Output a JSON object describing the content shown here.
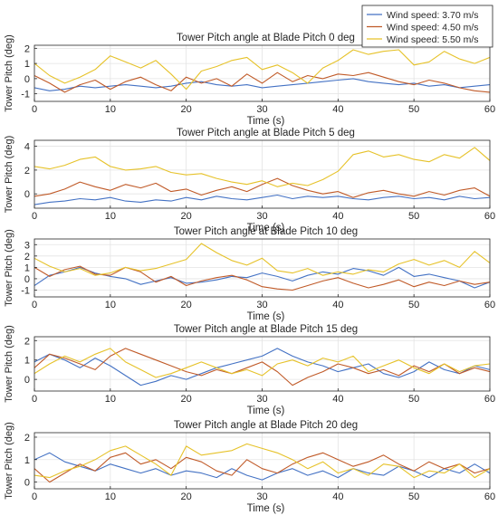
{
  "legend": {
    "placement": "top-right",
    "entries": [
      {
        "label": "Wind speed: 3.70 m/s",
        "color": "#4472c4"
      },
      {
        "label": "Wind speed: 4.50 m/s",
        "color": "#c05a28"
      },
      {
        "label": "Wind speed: 5.50 m/s",
        "color": "#e6c229"
      }
    ]
  },
  "chart_data": [
    {
      "type": "line",
      "title": "Tower Pitch angle at Blade Pitch 0 deg",
      "xlabel": "Time (s)",
      "ylabel": "Tower Pitch (deg)",
      "xlim": [
        0,
        60
      ],
      "ylim": [
        -1.5,
        2.2
      ],
      "xticks": [
        0,
        10,
        20,
        30,
        40,
        50,
        60
      ],
      "yticks": [
        -1,
        0,
        1,
        2
      ],
      "grid": true,
      "x": [
        0,
        2,
        4,
        6,
        8,
        10,
        12,
        14,
        16,
        18,
        20,
        22,
        24,
        26,
        28,
        30,
        32,
        34,
        36,
        38,
        40,
        42,
        44,
        46,
        48,
        50,
        52,
        54,
        56,
        58,
        60
      ],
      "series": [
        {
          "name": "Wind speed: 3.70 m/s",
          "color": "#4472c4",
          "values": [
            -0.6,
            -0.8,
            -0.7,
            -0.5,
            -0.6,
            -0.5,
            -0.4,
            -0.5,
            -0.6,
            -0.5,
            -0.3,
            -0.2,
            -0.4,
            -0.5,
            -0.4,
            -0.6,
            -0.5,
            -0.4,
            -0.3,
            -0.2,
            -0.1,
            0.0,
            -0.2,
            -0.3,
            -0.4,
            -0.3,
            -0.5,
            -0.4,
            -0.6,
            -0.5,
            -0.4
          ]
        },
        {
          "name": "Wind speed: 4.50 m/s",
          "color": "#c05a28",
          "values": [
            0.2,
            -0.3,
            -0.9,
            -0.4,
            -0.1,
            -0.7,
            -0.2,
            0.1,
            -0.4,
            -0.8,
            0.1,
            -0.3,
            0.0,
            -0.5,
            0.3,
            -0.3,
            0.4,
            -0.2,
            0.2,
            0.0,
            0.3,
            0.2,
            0.4,
            0.1,
            -0.2,
            -0.4,
            -0.1,
            -0.3,
            -0.6,
            -0.8,
            -0.9
          ]
        },
        {
          "name": "Wind speed: 5.50 m/s",
          "color": "#e6c229",
          "values": [
            1.0,
            0.2,
            -0.3,
            0.1,
            0.6,
            1.5,
            1.1,
            0.7,
            1.2,
            0.3,
            -0.7,
            0.5,
            0.8,
            1.2,
            1.4,
            0.6,
            0.9,
            0.4,
            -0.3,
            0.7,
            1.2,
            1.9,
            1.6,
            1.8,
            1.9,
            0.9,
            1.1,
            1.8,
            1.3,
            1.0,
            1.4
          ]
        }
      ]
    },
    {
      "type": "line",
      "title": "Tower Pitch angle at Blade Pitch 5 deg",
      "xlabel": "Time (s)",
      "ylabel": "Tower Pitch (deg)",
      "xlim": [
        0,
        60
      ],
      "ylim": [
        -1.2,
        4.5
      ],
      "xticks": [
        0,
        10,
        20,
        30,
        40,
        50,
        60
      ],
      "yticks": [
        0,
        2,
        4
      ],
      "grid": true,
      "x": [
        0,
        2,
        4,
        6,
        8,
        10,
        12,
        14,
        16,
        18,
        20,
        22,
        24,
        26,
        28,
        30,
        32,
        34,
        36,
        38,
        40,
        42,
        44,
        46,
        48,
        50,
        52,
        54,
        56,
        58,
        60
      ],
      "series": [
        {
          "name": "Wind speed: 3.70 m/s",
          "color": "#4472c4",
          "values": [
            -0.9,
            -0.7,
            -0.6,
            -0.4,
            -0.5,
            -0.3,
            -0.6,
            -0.7,
            -0.5,
            -0.6,
            -0.3,
            -0.5,
            -0.2,
            -0.4,
            -0.5,
            -0.3,
            -0.1,
            -0.4,
            -0.2,
            -0.3,
            -0.2,
            -0.4,
            -0.5,
            -0.3,
            -0.2,
            -0.4,
            -0.3,
            -0.5,
            -0.2,
            -0.4,
            -0.3
          ]
        },
        {
          "name": "Wind speed: 4.50 m/s",
          "color": "#c05a28",
          "values": [
            -0.2,
            0.0,
            0.4,
            1.0,
            0.6,
            0.3,
            0.8,
            0.5,
            0.9,
            0.2,
            0.4,
            -0.1,
            0.3,
            0.6,
            0.2,
            0.8,
            1.3,
            0.7,
            0.3,
            0.0,
            0.2,
            -0.3,
            0.1,
            0.3,
            0.0,
            -0.2,
            0.2,
            -0.1,
            0.3,
            0.5,
            -0.2
          ]
        },
        {
          "name": "Wind speed: 5.50 m/s",
          "color": "#e6c229",
          "values": [
            2.3,
            2.1,
            2.4,
            2.9,
            3.1,
            2.3,
            2.0,
            2.1,
            2.3,
            1.8,
            1.6,
            1.7,
            1.3,
            1.0,
            0.8,
            1.1,
            0.6,
            0.9,
            0.7,
            1.2,
            1.9,
            3.3,
            3.6,
            3.1,
            3.3,
            2.9,
            2.7,
            3.3,
            3.0,
            3.9,
            2.8
          ]
        }
      ]
    },
    {
      "type": "line",
      "title": "Tower Pitch angle at Blade Pitch 10 deg",
      "xlabel": "Time (s)",
      "ylabel": "Tower Pitch (deg)",
      "xlim": [
        0,
        60
      ],
      "ylim": [
        -1.6,
        3.5
      ],
      "xticks": [
        0,
        10,
        20,
        30,
        40,
        50,
        60
      ],
      "yticks": [
        -1,
        0,
        1,
        2,
        3
      ],
      "grid": true,
      "x": [
        0,
        2,
        4,
        6,
        8,
        10,
        12,
        14,
        16,
        18,
        20,
        22,
        24,
        26,
        28,
        30,
        32,
        34,
        36,
        38,
        40,
        42,
        44,
        46,
        48,
        50,
        52,
        54,
        56,
        58,
        60
      ],
      "series": [
        {
          "name": "Wind speed: 3.70 m/s",
          "color": "#4472c4",
          "values": [
            -0.6,
            0.3,
            0.6,
            1.0,
            0.5,
            0.2,
            0.0,
            -0.5,
            -0.2,
            0.1,
            -0.4,
            -0.3,
            -0.1,
            0.2,
            0.1,
            0.5,
            0.2,
            -0.2,
            0.3,
            0.6,
            0.4,
            0.9,
            0.7,
            0.3,
            1.0,
            0.2,
            0.4,
            0.1,
            -0.2,
            -0.8,
            -0.3
          ]
        },
        {
          "name": "Wind speed: 4.50 m/s",
          "color": "#c05a28",
          "values": [
            1.0,
            0.2,
            0.8,
            1.1,
            0.4,
            0.3,
            1.0,
            0.6,
            -0.3,
            0.2,
            -0.6,
            -0.2,
            0.1,
            0.3,
            -0.1,
            -0.7,
            -0.9,
            -1.0,
            -0.6,
            -0.2,
            0.1,
            -0.4,
            -0.8,
            -0.5,
            -0.1,
            -0.7,
            -0.3,
            -0.6,
            -0.2,
            -0.5,
            -0.3
          ]
        },
        {
          "name": "Wind speed: 5.50 m/s",
          "color": "#e6c229",
          "values": [
            1.8,
            1.1,
            0.6,
            0.9,
            0.3,
            0.5,
            1.0,
            0.7,
            0.9,
            1.3,
            1.7,
            3.1,
            2.3,
            1.6,
            1.2,
            1.8,
            0.7,
            0.5,
            0.9,
            0.3,
            0.6,
            0.4,
            0.8,
            0.6,
            1.3,
            1.7,
            1.2,
            1.6,
            1.0,
            2.4,
            1.4
          ]
        }
      ]
    },
    {
      "type": "line",
      "title": "Tower Pitch angle at Blade Pitch 15 deg",
      "xlabel": "Time (s)",
      "ylabel": "Tower Pitch (deg)",
      "xlim": [
        0,
        60
      ],
      "ylim": [
        -0.6,
        2.2
      ],
      "xticks": [
        0,
        10,
        20,
        30,
        40,
        50,
        60
      ],
      "yticks": [
        0,
        1,
        2
      ],
      "grid": true,
      "x": [
        0,
        2,
        4,
        6,
        8,
        10,
        12,
        14,
        16,
        18,
        20,
        22,
        24,
        26,
        28,
        30,
        32,
        34,
        36,
        38,
        40,
        42,
        44,
        46,
        48,
        50,
        52,
        54,
        56,
        58,
        60
      ],
      "series": [
        {
          "name": "Wind speed: 3.70 m/s",
          "color": "#4472c4",
          "values": [
            0.9,
            1.3,
            1.0,
            0.6,
            1.1,
            0.7,
            0.2,
            -0.3,
            -0.1,
            0.2,
            0.0,
            0.3,
            0.6,
            0.8,
            1.0,
            1.2,
            1.6,
            1.2,
            0.9,
            0.7,
            0.4,
            0.6,
            0.8,
            0.3,
            0.1,
            0.4,
            0.9,
            0.5,
            0.3,
            0.7,
            0.5
          ]
        },
        {
          "name": "Wind speed: 4.50 m/s",
          "color": "#c05a28",
          "values": [
            0.6,
            1.3,
            1.1,
            0.8,
            0.5,
            1.2,
            1.6,
            1.3,
            1.0,
            0.7,
            0.4,
            0.2,
            0.5,
            0.3,
            0.6,
            0.9,
            0.4,
            -0.3,
            0.1,
            0.4,
            0.8,
            0.6,
            0.3,
            0.5,
            0.2,
            0.7,
            0.4,
            0.8,
            0.3,
            0.6,
            0.4
          ]
        },
        {
          "name": "Wind speed: 5.50 m/s",
          "color": "#e6c229",
          "values": [
            0.3,
            0.8,
            1.2,
            0.9,
            1.3,
            1.6,
            0.9,
            0.5,
            0.1,
            0.3,
            0.6,
            0.9,
            0.6,
            0.3,
            0.5,
            0.2,
            0.8,
            1.0,
            0.7,
            1.1,
            0.9,
            1.2,
            0.4,
            0.7,
            1.0,
            0.6,
            0.3,
            0.8,
            0.4,
            0.7,
            0.8
          ]
        }
      ]
    },
    {
      "type": "line",
      "title": "Tower Pitch angle at Blade Pitch 20 deg",
      "xlabel": "Time (s)",
      "ylabel": "Tower Pitch (deg)",
      "xlim": [
        0,
        60
      ],
      "ylim": [
        -0.3,
        2.2
      ],
      "xticks": [
        0,
        10,
        20,
        30,
        40,
        50,
        60
      ],
      "yticks": [
        0,
        1,
        2
      ],
      "grid": true,
      "x": [
        0,
        2,
        4,
        6,
        8,
        10,
        12,
        14,
        16,
        18,
        20,
        22,
        24,
        26,
        28,
        30,
        32,
        34,
        36,
        38,
        40,
        42,
        44,
        46,
        48,
        50,
        52,
        54,
        56,
        58,
        60
      ],
      "series": [
        {
          "name": "Wind speed: 3.70 m/s",
          "color": "#4472c4",
          "values": [
            1.0,
            1.3,
            0.9,
            0.7,
            0.5,
            0.8,
            0.6,
            0.4,
            0.6,
            0.3,
            0.5,
            0.4,
            0.2,
            0.6,
            0.3,
            0.1,
            0.4,
            0.6,
            0.3,
            0.5,
            0.2,
            0.6,
            0.4,
            0.3,
            0.7,
            0.5,
            0.2,
            0.6,
            0.4,
            0.8,
            0.4
          ]
        },
        {
          "name": "Wind speed: 4.50 m/s",
          "color": "#c05a28",
          "values": [
            0.6,
            0.0,
            0.4,
            0.8,
            0.5,
            1.1,
            1.3,
            0.8,
            1.0,
            0.6,
            1.1,
            0.9,
            0.5,
            0.3,
            1.0,
            0.6,
            0.4,
            0.8,
            1.1,
            1.3,
            1.0,
            0.7,
            0.9,
            1.2,
            0.8,
            0.5,
            0.9,
            0.6,
            0.8,
            0.4,
            0.6
          ]
        },
        {
          "name": "Wind speed: 5.50 m/s",
          "color": "#e6c229",
          "values": [
            0.3,
            0.2,
            0.5,
            0.7,
            1.0,
            1.4,
            1.6,
            1.2,
            0.8,
            0.3,
            1.6,
            1.2,
            1.3,
            1.4,
            1.7,
            1.5,
            1.3,
            1.0,
            0.6,
            0.9,
            0.4,
            0.6,
            0.3,
            0.8,
            0.7,
            0.2,
            0.5,
            0.4,
            0.8,
            0.2,
            0.6
          ]
        }
      ]
    }
  ]
}
